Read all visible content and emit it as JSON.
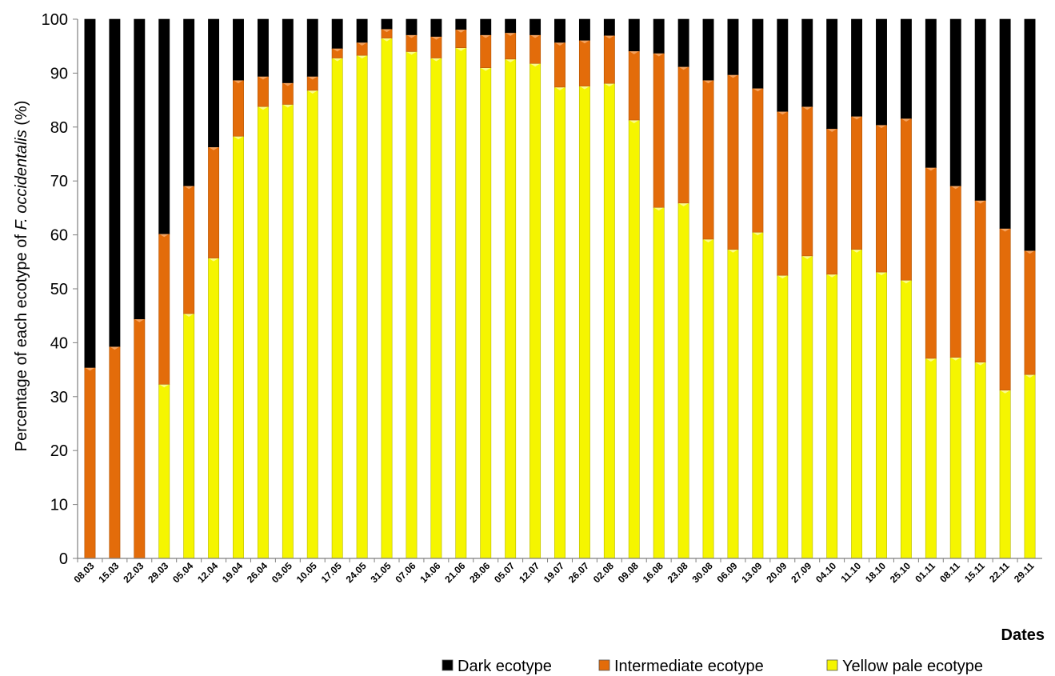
{
  "chart_data": {
    "type": "bar",
    "stacked": true,
    "categories": [
      "08.03",
      "15.03",
      "22.03",
      "29.03",
      "05.04",
      "12.04",
      "19.04",
      "26.04",
      "03.05",
      "10.05",
      "17.05",
      "24.05",
      "31.05",
      "07.06",
      "14.06",
      "21.06",
      "28.06",
      "05.07",
      "12.07",
      "19.07",
      "26.07",
      "02.08",
      "09.08",
      "16.08",
      "23.08",
      "30.08",
      "06.09",
      "13.09",
      "20.09",
      "27.09",
      "04.10",
      "11.10",
      "18.10",
      "25.10",
      "01.11",
      "08.11",
      "15.11",
      "22.11",
      "29.11"
    ],
    "series": [
      {
        "name": "Yellow pale ecotype",
        "color": "#f5f500",
        "values": [
          0,
          0,
          0,
          32.3,
          45.4,
          55.7,
          78.3,
          83.8,
          84.2,
          86.8,
          92.8,
          93.3,
          96.5,
          94.0,
          92.8,
          94.7,
          91.0,
          92.6,
          91.8,
          87.4,
          87.6,
          88.1,
          81.3,
          65.1,
          65.9,
          59.2,
          57.3,
          60.5,
          52.5,
          56.1,
          52.7,
          57.3,
          53.1,
          51.6,
          37.1,
          37.3,
          36.4,
          31.2,
          34.1
        ]
      },
      {
        "name": "Intermediate ecotype",
        "color": "#e36c0a",
        "values": [
          35.4,
          39.3,
          44.4,
          27.9,
          23.7,
          20.6,
          10.4,
          5.6,
          4.0,
          2.6,
          1.8,
          2.4,
          1.7,
          3.1,
          4.0,
          3.4,
          6.1,
          4.9,
          5.3,
          8.3,
          8.5,
          8.9,
          12.8,
          28.6,
          25.3,
          29.5,
          32.4,
          26.7,
          30.4,
          27.7,
          27.0,
          24.7,
          27.3,
          30.0,
          35.4,
          31.8,
          30.0,
          30.0,
          23.0
        ]
      },
      {
        "name": "Dark ecotype",
        "color": "#000000",
        "values": [
          64.6,
          60.7,
          55.6,
          39.8,
          30.9,
          23.7,
          11.3,
          10.6,
          11.8,
          10.6,
          5.4,
          4.3,
          1.8,
          2.9,
          3.2,
          1.9,
          2.9,
          2.5,
          2.9,
          4.3,
          3.9,
          3.0,
          5.9,
          6.3,
          8.8,
          11.3,
          10.3,
          12.8,
          17.1,
          16.2,
          20.3,
          18.0,
          19.6,
          18.4,
          27.5,
          30.9,
          33.6,
          38.8,
          42.9
        ]
      }
    ],
    "legend_order": [
      "Dark ecotype",
      "Intermediate ecotype",
      "Yellow pale ecotype"
    ],
    "xlabel": "Dates",
    "ylabel_prefix": "Percentage of each ecotype of ",
    "ylabel_italic": "F. occidentalis",
    "ylabel_suffix": " (%)",
    "ylim": [
      0,
      100
    ],
    "yticks": [
      0,
      10,
      20,
      30,
      40,
      50,
      60,
      70,
      80,
      90,
      100
    ],
    "grid": false,
    "legend_position": "bottom-right"
  }
}
